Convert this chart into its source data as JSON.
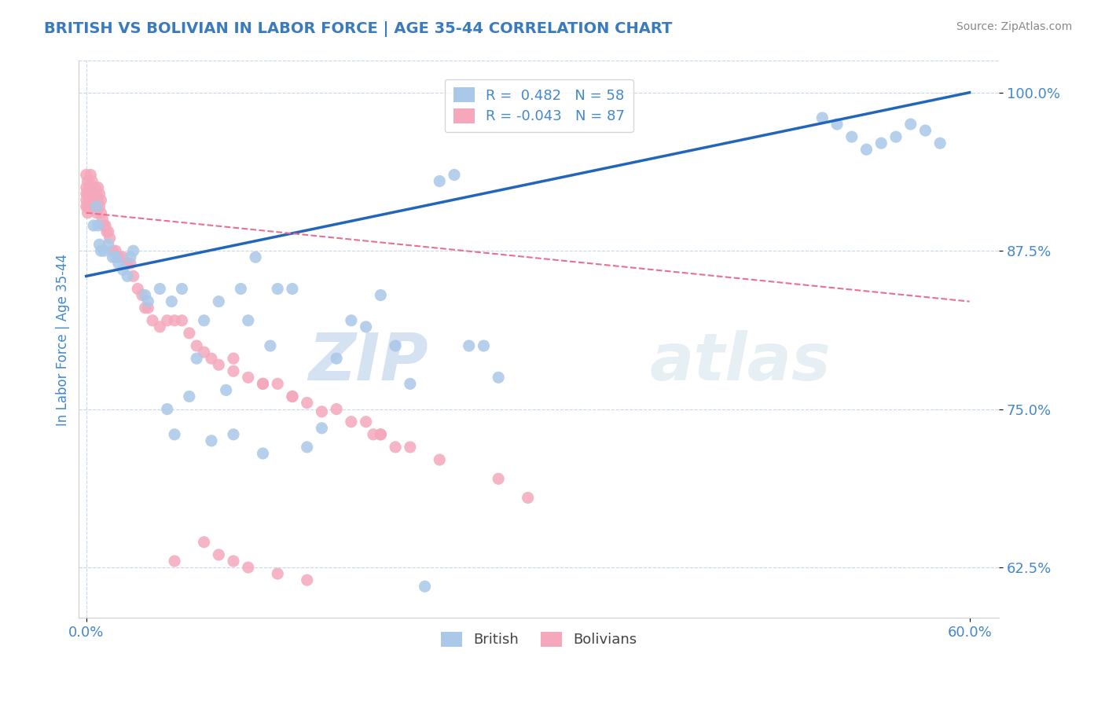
{
  "title": "BRITISH VS BOLIVIAN IN LABOR FORCE | AGE 35-44 CORRELATION CHART",
  "source_text": "Source: ZipAtlas.com",
  "ylabel": "In Labor Force | Age 35-44",
  "watermark_zip": "ZIP",
  "watermark_atlas": "atlas",
  "xlim": [
    -0.005,
    0.62
  ],
  "ylim": [
    0.585,
    1.025
  ],
  "yticks": [
    0.625,
    0.75,
    0.875,
    1.0
  ],
  "ytick_labels": [
    "62.5%",
    "75.0%",
    "87.5%",
    "100.0%"
  ],
  "xtick_left": "0.0%",
  "xtick_right": "60.0%",
  "legend_british": "British",
  "legend_bolivians": "Bolivians",
  "r_british": 0.482,
  "n_british": 58,
  "r_bolivians": -0.043,
  "n_bolivians": 87,
  "british_color": "#aac8e8",
  "bolivian_color": "#f5a8bc",
  "trend_british_color": "#2266bb",
  "trend_bolivian_color": "#e87090",
  "title_color": "#3a7abf",
  "axis_color": "#4488cc",
  "grid_color": "#c8d8e8",
  "background_color": "#ffffff",
  "british_x": [
    0.005,
    0.007,
    0.008,
    0.009,
    0.01,
    0.012,
    0.015,
    0.018,
    0.02,
    0.022,
    0.025,
    0.028,
    0.03,
    0.032,
    0.04,
    0.042,
    0.05,
    0.055,
    0.058,
    0.06,
    0.065,
    0.07,
    0.075,
    0.08,
    0.085,
    0.09,
    0.095,
    0.1,
    0.105,
    0.11,
    0.115,
    0.12,
    0.125,
    0.13,
    0.14,
    0.15,
    0.16,
    0.17,
    0.18,
    0.19,
    0.2,
    0.21,
    0.22,
    0.23,
    0.24,
    0.25,
    0.26,
    0.27,
    0.28,
    0.5,
    0.51,
    0.52,
    0.53,
    0.54,
    0.55,
    0.56,
    0.57,
    0.58
  ],
  "british_y": [
    0.895,
    0.91,
    0.895,
    0.88,
    0.875,
    0.875,
    0.88,
    0.87,
    0.87,
    0.865,
    0.86,
    0.855,
    0.87,
    0.875,
    0.84,
    0.835,
    0.845,
    0.75,
    0.835,
    0.73,
    0.845,
    0.76,
    0.79,
    0.82,
    0.725,
    0.835,
    0.765,
    0.73,
    0.845,
    0.82,
    0.87,
    0.715,
    0.8,
    0.845,
    0.845,
    0.72,
    0.735,
    0.79,
    0.82,
    0.815,
    0.84,
    0.8,
    0.77,
    0.61,
    0.93,
    0.935,
    0.8,
    0.8,
    0.775,
    0.98,
    0.975,
    0.965,
    0.955,
    0.96,
    0.965,
    0.975,
    0.97,
    0.96
  ],
  "bolivian_x": [
    0.0,
    0.0,
    0.0,
    0.0,
    0.0,
    0.001,
    0.001,
    0.001,
    0.001,
    0.002,
    0.002,
    0.002,
    0.003,
    0.003,
    0.003,
    0.004,
    0.004,
    0.005,
    0.005,
    0.006,
    0.006,
    0.007,
    0.007,
    0.008,
    0.008,
    0.009,
    0.009,
    0.01,
    0.01,
    0.011,
    0.012,
    0.013,
    0.014,
    0.015,
    0.016,
    0.018,
    0.02,
    0.022,
    0.025,
    0.028,
    0.03,
    0.032,
    0.035,
    0.038,
    0.04,
    0.042,
    0.045,
    0.05,
    0.055,
    0.06,
    0.065,
    0.07,
    0.075,
    0.08,
    0.085,
    0.09,
    0.1,
    0.11,
    0.12,
    0.13,
    0.14,
    0.15,
    0.17,
    0.19,
    0.2,
    0.22,
    0.24,
    0.16,
    0.18,
    0.195,
    0.21,
    0.28,
    0.3,
    0.1,
    0.12,
    0.14,
    0.2,
    0.06,
    0.08,
    0.09,
    0.1,
    0.11,
    0.13,
    0.15
  ],
  "bolivian_y": [
    0.935,
    0.925,
    0.92,
    0.915,
    0.91,
    0.93,
    0.92,
    0.91,
    0.905,
    0.925,
    0.92,
    0.915,
    0.935,
    0.92,
    0.91,
    0.93,
    0.915,
    0.92,
    0.91,
    0.925,
    0.915,
    0.92,
    0.905,
    0.925,
    0.915,
    0.92,
    0.91,
    0.915,
    0.905,
    0.9,
    0.895,
    0.895,
    0.89,
    0.89,
    0.885,
    0.875,
    0.875,
    0.87,
    0.87,
    0.865,
    0.865,
    0.855,
    0.845,
    0.84,
    0.83,
    0.83,
    0.82,
    0.815,
    0.82,
    0.82,
    0.82,
    0.81,
    0.8,
    0.795,
    0.79,
    0.785,
    0.78,
    0.775,
    0.77,
    0.77,
    0.76,
    0.755,
    0.75,
    0.74,
    0.73,
    0.72,
    0.71,
    0.748,
    0.74,
    0.73,
    0.72,
    0.695,
    0.68,
    0.79,
    0.77,
    0.76,
    0.73,
    0.63,
    0.645,
    0.635,
    0.63,
    0.625,
    0.62,
    0.615
  ]
}
